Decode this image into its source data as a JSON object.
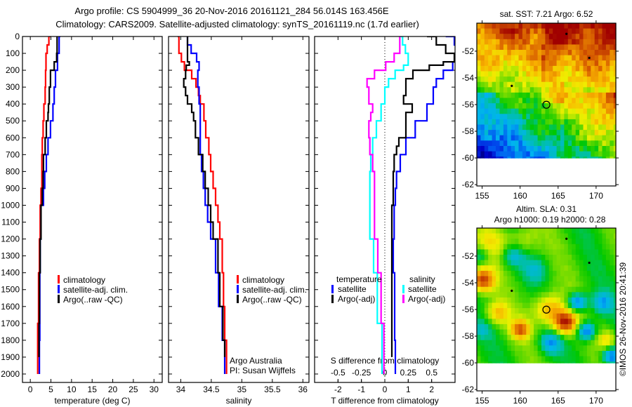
{
  "title": {
    "line1": "Argo profile: CS 5904999_36 20-Nov-2016 20161121_284 56.014S 163.456E",
    "line2": "Climatology: CARS2009. Satellite-adjusted climatology: synTS_20161119.nc (1.7d earlier)"
  },
  "credit": "©IMOS 26-Nov-2016 20:41:39",
  "colors": {
    "red": "#ff0000",
    "blue": "#0000ff",
    "black": "#000000",
    "cyan": "#00ffff",
    "magenta": "#ff00ff"
  },
  "chart_data": [
    {
      "id": "temperature",
      "type": "line",
      "xlabel": "temperature (deg C)",
      "ylabel": "",
      "xlim": [
        -1.9,
        32
      ],
      "ylim": [
        0,
        2050
      ],
      "xticks": [
        0,
        5,
        10,
        15,
        20,
        25,
        30
      ],
      "xtick_labels": [
        "0",
        "5",
        "10",
        "15",
        "20",
        "25",
        "30"
      ],
      "yticks": [
        0,
        100,
        200,
        300,
        400,
        500,
        600,
        700,
        800,
        900,
        1000,
        1100,
        1200,
        1300,
        1400,
        1500,
        1600,
        1700,
        1800,
        1900,
        2000
      ],
      "ytick_labels": [
        "0",
        "100",
        "200",
        "300",
        "400",
        "500",
        "600",
        "700",
        "800",
        "900",
        "1000",
        "1100",
        "1200",
        "1300",
        "1400",
        "1500",
        "1600",
        "1700",
        "1800",
        "1900",
        "2000"
      ],
      "legend": [
        "climatology",
        "satellite-adj. clim.",
        "Argo(..raw -QC)"
      ],
      "series": [
        {
          "name": "climatology",
          "color": "#ff0000",
          "depth": [
            0,
            50,
            100,
            200,
            300,
            400,
            500,
            600,
            700,
            900,
            1000,
            1200,
            1400,
            1700,
            1900,
            2000
          ],
          "values": [
            4.9,
            4.5,
            4.1,
            3.8,
            3.7,
            3.6,
            3.3,
            3.1,
            2.9,
            2.8,
            2.6,
            2.4,
            2.2,
            2.0,
            1.8,
            1.8
          ]
        },
        {
          "name": "satellite-adj. clim.",
          "color": "#0000ff",
          "depth": [
            0,
            100,
            200,
            300,
            400,
            500,
            600,
            700,
            800,
            900,
            1000,
            1200,
            1400,
            1500,
            1800,
            2000
          ],
          "values": [
            7.3,
            7.0,
            6.6,
            6.1,
            5.8,
            5.5,
            4.9,
            4.3,
            3.9,
            3.5,
            3.2,
            2.6,
            2.4,
            2.3,
            2.3,
            2.2
          ]
        },
        {
          "name": "Argo(..raw -QC)",
          "color": "#000000",
          "depth": [
            0,
            100,
            150,
            200,
            300,
            400,
            450,
            500,
            600,
            700,
            800,
            900,
            1000,
            1200,
            1400,
            1700,
            1900
          ],
          "values": [
            6.7,
            6.5,
            6.4,
            5.8,
            4.9,
            4.6,
            4.4,
            4.3,
            3.9,
            3.6,
            3.2,
            3.1,
            2.9,
            2.6,
            2.4,
            2.2,
            2.1
          ]
        }
      ]
    },
    {
      "id": "salinity",
      "type": "line",
      "xlabel": "salinity",
      "xlim": [
        33.8,
        36.1
      ],
      "ylim": [
        0,
        2050
      ],
      "xticks": [
        34,
        34.5,
        35,
        35.5,
        36
      ],
      "xtick_labels": [
        "34",
        "34.5",
        "35",
        "35.5",
        "36"
      ],
      "legend": [
        "climatology",
        "satellite-adj. clim.",
        "Argo(..raw -QC)"
      ],
      "annotation": [
        "Argo Australia",
        "PI: Susan Wijffels"
      ],
      "series": [
        {
          "name": "climatology",
          "color": "#ff0000",
          "depth": [
            0,
            100,
            150,
            200,
            250,
            300,
            350,
            400,
            500,
            600,
            700,
            800,
            900,
            1000,
            1100,
            1200,
            1400,
            1600,
            1800,
            2000
          ],
          "values": [
            33.95,
            33.97,
            34.01,
            34.06,
            34.18,
            34.25,
            34.29,
            34.32,
            34.38,
            34.41,
            34.46,
            34.49,
            34.53,
            34.57,
            34.61,
            34.64,
            34.68,
            34.7,
            34.72,
            34.75
          ]
        },
        {
          "name": "satellite-adj. clim.",
          "color": "#0000ff",
          "depth": [
            0,
            50,
            100,
            150,
            200,
            300,
            400,
            500,
            700,
            800,
            900,
            1000,
            1100,
            1200,
            1400,
            1600,
            1800,
            2000
          ],
          "values": [
            34.11,
            34.11,
            34.17,
            34.26,
            34.3,
            34.28,
            34.3,
            34.32,
            34.32,
            34.34,
            34.37,
            34.4,
            34.44,
            34.49,
            34.57,
            34.62,
            34.68,
            34.72
          ]
        },
        {
          "name": "Argo(..raw -QC)",
          "color": "#000000",
          "depth": [
            0,
            150,
            170,
            200,
            250,
            300,
            350,
            400,
            450,
            500,
            600,
            700,
            800,
            900,
            1000,
            1100,
            1200,
            1400,
            1600,
            1800,
            1900
          ],
          "values": [
            34.11,
            34.11,
            34.14,
            34.09,
            34.08,
            34.05,
            34.08,
            34.11,
            34.18,
            34.21,
            34.24,
            34.29,
            34.36,
            34.4,
            34.45,
            34.49,
            34.53,
            34.61,
            34.64,
            34.69,
            34.72
          ]
        }
      ]
    },
    {
      "id": "difference",
      "type": "line",
      "xlabel": "T difference from climatology",
      "xlabel2": "S difference from climatology",
      "xlim": [
        -3,
        3
      ],
      "xlim_s": [
        -0.75,
        0.75
      ],
      "ylim": [
        0,
        2050
      ],
      "xticks": [
        -2,
        -1,
        0,
        1,
        2
      ],
      "xtick_labels": [
        "-2",
        "-1",
        "0",
        "1",
        "2"
      ],
      "xticks_s": [
        -0.5,
        -0.25,
        0,
        0.25,
        0.5
      ],
      "xtick_labels_s": [
        "-0.5",
        "-0.25",
        "0",
        "0.25",
        "0.5"
      ],
      "legend_t": {
        "heading": "temperature",
        "items": [
          "satellite",
          "Argo(-adj)"
        ]
      },
      "legend_s": {
        "heading": "salinity",
        "items": [
          "satellite",
          "Argo(-adj)"
        ]
      },
      "series": [
        {
          "name": "T satellite",
          "axis": "T",
          "color": "#0000ff",
          "depth": [
            0,
            50,
            100,
            150,
            200,
            250,
            300,
            400,
            500,
            600,
            700,
            800,
            900,
            1000,
            1200,
            1400,
            1800,
            2000
          ],
          "values": [
            2.6,
            2.97,
            3.2,
            3.2,
            2.9,
            2.5,
            2.2,
            2.07,
            1.8,
            1.3,
            0.9,
            0.66,
            0.5,
            0.45,
            0.4,
            0.36,
            0.42,
            0.45
          ]
        },
        {
          "name": "T Argo(-adj)",
          "axis": "T",
          "color": "#000000",
          "depth": [
            0,
            50,
            100,
            150,
            170,
            200,
            250,
            300,
            350,
            400,
            450,
            500,
            600,
            650,
            700,
            800,
            1000,
            1200,
            1400,
            1900
          ],
          "values": [
            1.8,
            2.2,
            2.6,
            2.97,
            2.5,
            1.9,
            1.2,
            0.9,
            0.9,
            0.8,
            1.17,
            0.9,
            0.9,
            0.6,
            0.5,
            0.4,
            0.36,
            0.3,
            0.3,
            0.3
          ]
        },
        {
          "name": "S satellite",
          "axis": "S",
          "color": "#00ffff",
          "depth": [
            0,
            50,
            100,
            150,
            170,
            200,
            250,
            300,
            400,
            500,
            600,
            700,
            800,
            1000,
            1200,
            1400,
            1700,
            2000
          ],
          "values": [
            0.155,
            0.19,
            0.22,
            0.25,
            0.25,
            0.2,
            0.11,
            0.04,
            0.0,
            -0.04,
            -0.09,
            -0.13,
            -0.15,
            -0.16,
            -0.16,
            -0.12,
            -0.08,
            -0.03
          ]
        },
        {
          "name": "S Argo(-adj)",
          "axis": "S",
          "color": "#ff00ff",
          "depth": [
            0,
            100,
            150,
            200,
            250,
            300,
            400,
            450,
            500,
            600,
            700,
            800,
            1000,
            1200,
            1400,
            1700,
            2000
          ],
          "values": [
            0.165,
            0.16,
            0.1,
            0.01,
            -0.11,
            -0.19,
            -0.17,
            -0.13,
            -0.15,
            -0.17,
            -0.16,
            -0.13,
            -0.11,
            -0.11,
            -0.075,
            -0.04,
            -0.01
          ]
        }
      ]
    },
    {
      "id": "sst-map",
      "type": "heatmap",
      "title": "sat. SST: 7.21  Argo: 6.52",
      "lon_lim": [
        154.3,
        172.6
      ],
      "lat_lim": [
        -62.1,
        -49.9
      ],
      "data_lat_min": -60,
      "xticks": [
        155,
        160,
        165,
        170
      ],
      "xtick_labels": [
        "155",
        "160",
        "165",
        "170"
      ],
      "yticks": [
        -52,
        -54,
        -56,
        -58,
        -60,
        -62
      ],
      "ytick_labels": [
        "-52",
        "-54",
        "-56",
        "-58",
        "-60",
        "-62"
      ]
    },
    {
      "id": "sla-map",
      "type": "heatmap",
      "title": "Altim. SLA: 0.31",
      "subtitle": "Argo h1000: 0.19 h2000: 0.28",
      "lon_lim": [
        154.3,
        172.6
      ],
      "lat_lim": [
        -62.1,
        -49.9
      ],
      "data_lat_min": -60,
      "xticks": [
        155,
        160,
        165,
        170
      ],
      "xtick_labels": [
        "155",
        "160",
        "165",
        "170"
      ],
      "yticks": [
        -52,
        -54,
        -56,
        -58,
        -60,
        -62
      ],
      "ytick_labels": [
        "-52",
        "-54",
        "-56",
        "-58",
        "-60",
        "-62"
      ]
    }
  ],
  "profile_location": {
    "lon": 163.456,
    "lat": -56.014
  },
  "islands": [
    {
      "lon": 166.1,
      "lat": -50.7
    },
    {
      "lon": 169.1,
      "lat": -52.5
    },
    {
      "lon": 158.9,
      "lat": -54.6
    }
  ]
}
